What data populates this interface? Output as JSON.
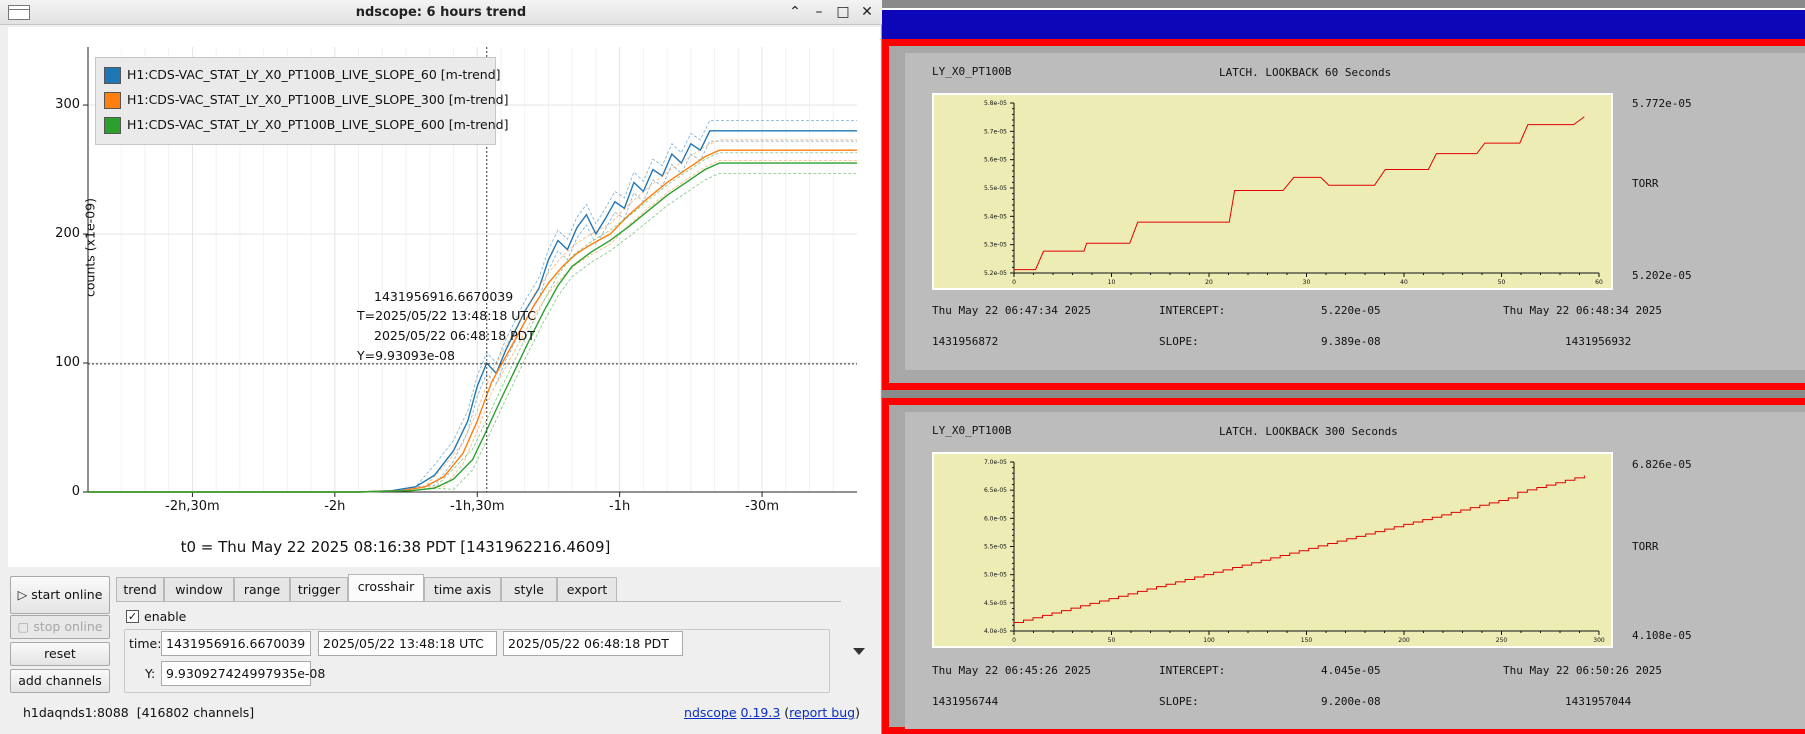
{
  "window": {
    "title": "ndscope: 6 hours trend",
    "controls": {
      "minimize": "⌃",
      "min": "–",
      "max": "□",
      "close": "✕"
    }
  },
  "plot": {
    "y_axis_label": "counts (x1e-09)",
    "y_ticks": [
      "0",
      "100",
      "200",
      "300"
    ],
    "x_ticks": [
      "-2h,30m",
      "-2h",
      "-1h,30m",
      "-1h",
      "-30m"
    ],
    "legend": [
      {
        "label": "H1:CDS-VAC_STAT_LY_X0_PT100B_LIVE_SLOPE_60 [m-trend]",
        "color": "#1f77b4"
      },
      {
        "label": "H1:CDS-VAC_STAT_LY_X0_PT100B_LIVE_SLOPE_300 [m-trend]",
        "color": "#ff7f0e"
      },
      {
        "label": "H1:CDS-VAC_STAT_LY_X0_PT100B_LIVE_SLOPE_600 [m-trend]",
        "color": "#2ca02c"
      }
    ],
    "crosshair": {
      "gps": "1431956916.6670039",
      "utc": "T=2025/05/22 13:48:18 UTC",
      "pdt": "2025/05/22 06:48:18 PDT",
      "y": "Y=9.93093e-08"
    },
    "t0": "t0 = Thu May 22 2025 08:16:38 PDT [1431962216.4609]"
  },
  "chart_data": {
    "type": "line",
    "xlabel": "",
    "ylabel": "counts (x1e-09)",
    "x_unit": "minutes relative to t0",
    "xlim": [
      -172,
      -10
    ],
    "ylim": [
      0,
      345
    ],
    "crosshair_x": -88,
    "crosshair_y": 99.3,
    "series": [
      {
        "name": "H1:CDS-VAC_STAT_LY_X0_PT100B_LIVE_SLOPE_60 [m-trend]",
        "color": "#1f77b4",
        "points": [
          [
            -172,
            0
          ],
          [
            -140,
            0
          ],
          [
            -115,
            0
          ],
          [
            -108,
            1
          ],
          [
            -103,
            4
          ],
          [
            -99,
            13
          ],
          [
            -95,
            32
          ],
          [
            -92,
            55
          ],
          [
            -90,
            82
          ],
          [
            -88,
            100
          ],
          [
            -86,
            92
          ],
          [
            -84,
            110
          ],
          [
            -82,
            125
          ],
          [
            -80,
            140
          ],
          [
            -77,
            158
          ],
          [
            -75,
            180
          ],
          [
            -73,
            195
          ],
          [
            -71,
            188
          ],
          [
            -69,
            205
          ],
          [
            -67,
            215
          ],
          [
            -65,
            200
          ],
          [
            -63,
            212
          ],
          [
            -61,
            225
          ],
          [
            -59,
            220
          ],
          [
            -57,
            240
          ],
          [
            -55,
            233
          ],
          [
            -53,
            250
          ],
          [
            -51,
            245
          ],
          [
            -49,
            262
          ],
          [
            -47,
            255
          ],
          [
            -45,
            270
          ],
          [
            -43,
            265
          ],
          [
            -41,
            280
          ],
          [
            -39,
            280
          ],
          [
            -10,
            280
          ]
        ]
      },
      {
        "name": "H1:CDS-VAC_STAT_LY_X0_PT100B_LIVE_SLOPE_300 [m-trend]",
        "color": "#ff7f0e",
        "points": [
          [
            -172,
            0
          ],
          [
            -140,
            0
          ],
          [
            -115,
            0
          ],
          [
            -106,
            1
          ],
          [
            -101,
            4
          ],
          [
            -97,
            12
          ],
          [
            -93,
            30
          ],
          [
            -90,
            55
          ],
          [
            -87,
            85
          ],
          [
            -84,
            105
          ],
          [
            -81,
            125
          ],
          [
            -78,
            145
          ],
          [
            -75,
            162
          ],
          [
            -72,
            175
          ],
          [
            -69,
            185
          ],
          [
            -66,
            192
          ],
          [
            -62,
            200
          ],
          [
            -58,
            215
          ],
          [
            -54,
            228
          ],
          [
            -50,
            240
          ],
          [
            -46,
            250
          ],
          [
            -42,
            260
          ],
          [
            -39,
            265
          ],
          [
            -10,
            265
          ]
        ]
      },
      {
        "name": "H1:CDS-VAC_STAT_LY_X0_PT100B_LIVE_SLOPE_600 [m-trend]",
        "color": "#2ca02c",
        "points": [
          [
            -172,
            0
          ],
          [
            -140,
            0
          ],
          [
            -115,
            0
          ],
          [
            -104,
            1
          ],
          [
            -99,
            3
          ],
          [
            -95,
            10
          ],
          [
            -91,
            25
          ],
          [
            -88,
            48
          ],
          [
            -85,
            72
          ],
          [
            -82,
            95
          ],
          [
            -79,
            118
          ],
          [
            -76,
            140
          ],
          [
            -73,
            160
          ],
          [
            -70,
            175
          ],
          [
            -66,
            186
          ],
          [
            -62,
            195
          ],
          [
            -58,
            206
          ],
          [
            -54,
            218
          ],
          [
            -50,
            230
          ],
          [
            -46,
            240
          ],
          [
            -42,
            250
          ],
          [
            -39,
            255
          ],
          [
            -10,
            255
          ]
        ]
      }
    ]
  },
  "controls": {
    "start_online": "start online",
    "stop_online": "stop online",
    "reset": "reset",
    "add_channels": "add channels",
    "tabs": [
      "trend",
      "window",
      "range",
      "trigger",
      "crosshair",
      "time axis",
      "style",
      "export"
    ],
    "active_tab": "crosshair",
    "enable_label": "enable",
    "enable_checked": "✓",
    "time_label": "time:",
    "time_gps": "1431956916.6670039",
    "time_utc": "2025/05/22 13:48:18 UTC",
    "time_pdt": "2025/05/22 06:48:18 PDT",
    "y_label": "Y:",
    "y_value": "9.930927424997935e-08"
  },
  "status": {
    "server": "h1daqnds1:8088",
    "channels": "[416802 channels]",
    "app_link": "ndscope",
    "version_link": "0.19.3",
    "bug_open": "(",
    "bug_link": "report bug",
    "bug_close": ")"
  },
  "medm": {
    "panel1": {
      "channel": "LY_X0_PT100B",
      "title": "LATCH. LOOKBACK 60 Seconds",
      "y_max": "5.772e-05",
      "unit": "TORR",
      "y_min": "5.202e-05",
      "start_time": "Thu May 22 06:47:34 2025",
      "end_time": "Thu May 22 06:48:34 2025",
      "intercept_label": "INTERCEPT:",
      "intercept": "5.220e-05",
      "slope_label": "SLOPE:",
      "slope": "9.389e-08",
      "start_gps": "1431956872",
      "end_gps": "1431956932",
      "y_ticks": [
        "5.2e-05",
        "5.3e-05",
        "5.4e-05",
        "5.5e-05",
        "5.6e-05",
        "5.7e-05",
        "5.8e-05"
      ],
      "x_ticks": [
        "0",
        "10",
        "20",
        "30",
        "40",
        "50",
        "60"
      ]
    },
    "panel2": {
      "channel": "LY_X0_PT100B",
      "title": "LATCH. LOOKBACK 300 Seconds",
      "y_max": "6.826e-05",
      "unit": "TORR",
      "y_min": "4.108e-05",
      "start_time": "Thu May 22 06:45:26 2025",
      "end_time": "Thu May 22 06:50:26 2025",
      "intercept_label": "INTERCEPT:",
      "intercept": "4.045e-05",
      "slope_label": "SLOPE:",
      "slope": "9.200e-08",
      "start_gps": "1431956744",
      "end_gps": "1431957044",
      "y_ticks": [
        "4.0e-05",
        "4.5e-05",
        "5.0e-05",
        "5.5e-05",
        "6.0e-05",
        "6.5e-05",
        "7.0e-05"
      ],
      "x_ticks": [
        "0",
        "50",
        "100",
        "150",
        "200",
        "250",
        "300"
      ]
    },
    "colors": {
      "frame": "#ff0000",
      "plot_bg": "#ececb4",
      "trace": "#e00000",
      "bluebar": "#0d06b8"
    }
  }
}
